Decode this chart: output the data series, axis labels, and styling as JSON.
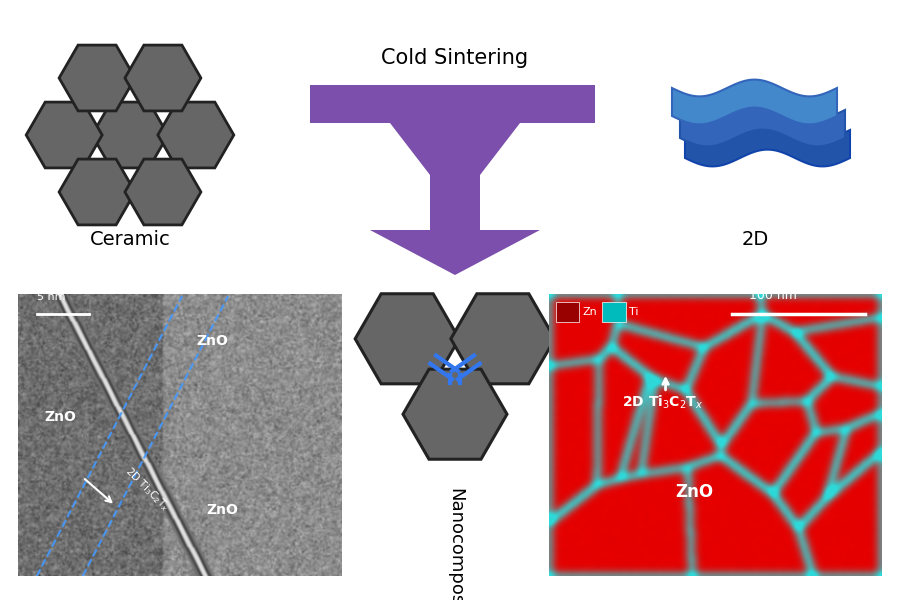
{
  "bg_color": "#ffffff",
  "ceramic_color": "#666666",
  "ceramic_edge": "#222222",
  "arrow_color": "#7B4FAB",
  "nanocomp_line_color": "#3377EE",
  "cold_sintering_text": "Cold Sintering",
  "ceramic_label": "Ceramic",
  "2d_label": "2D",
  "nanocomposite_label": "Nanocomposite"
}
